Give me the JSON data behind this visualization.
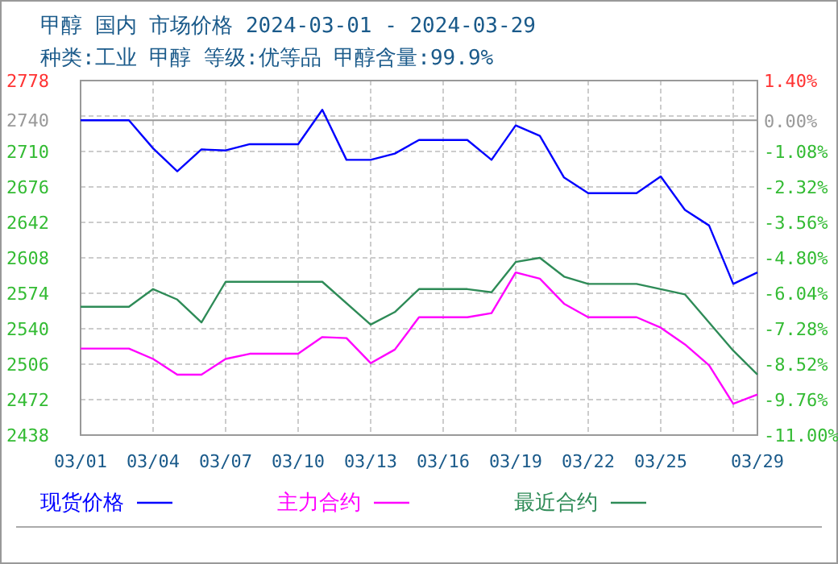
{
  "chart_data": {
    "type": "line",
    "title": "甲醇 国内 市场价格 2024-03-01 - 2024-03-29",
    "subtitle": "种类:工业 甲醇 等级:优等品 甲醇含量:99.9%",
    "xlim": [
      "--03-01",
      "--03-29"
    ],
    "xticks": [
      {
        "value": "--03-01",
        "label": "03/01"
      },
      {
        "value": "--03-04",
        "label": "03/04"
      },
      {
        "value": "--03-07",
        "label": "03/07"
      },
      {
        "value": "--03-10",
        "label": "03/10"
      },
      {
        "value": "--03-13",
        "label": "03/13"
      },
      {
        "value": "--03-16",
        "label": "03/16"
      },
      {
        "value": "--03-19",
        "label": "03/19"
      },
      {
        "value": "--03-22",
        "label": "03/22"
      },
      {
        "value": "--03-25",
        "label": "03/25"
      },
      {
        "value": "--03-28",
        "label": null
      },
      {
        "value": "--03-29",
        "label": "03/29"
      }
    ],
    "ylim": [
      2438,
      2778
    ],
    "yticks": [
      2778,
      {
        "value": 2744,
        "label": null
      },
      2710,
      2676,
      2642,
      2608,
      2574,
      2540,
      2506,
      2472,
      2438
    ],
    "y2lim": [
      -11.0,
      1.4
    ],
    "y2ticks": [
      {
        "value": 1.4,
        "label": "1.40%"
      },
      {
        "value": 0.16,
        "label": null
      },
      {
        "value": 0,
        "label": "0.00%"
      },
      {
        "value": -1.08,
        "label": "-1.08%"
      },
      {
        "value": -2.32,
        "label": "-2.32%"
      },
      {
        "value": -3.56,
        "label": "-3.56%"
      },
      {
        "value": -4.8,
        "label": "-4.80%"
      },
      {
        "value": -6.04,
        "label": "-6.04%"
      },
      {
        "value": -7.28,
        "label": "-7.28%"
      },
      {
        "value": -8.52,
        "label": "-8.52%"
      },
      {
        "value": -9.76,
        "label": "-9.76%"
      },
      {
        "value": -11.0,
        "label": "-11.00%"
      }
    ],
    "ref_lines": [
      {
        "axis": "y",
        "value": 2740,
        "label": "2740",
        "color": "#999999"
      }
    ],
    "grid": true,
    "legend": "bottom",
    "line_style": "solid",
    "marker": "none",
    "series": [
      {
        "name": "现货价格",
        "color": "#0000ff",
        "x": [
          "--03-01",
          "--03-03",
          "--03-04",
          "--03-05",
          "--03-06",
          "--03-07",
          "--03-08",
          "--03-10",
          "--03-11",
          "--03-12",
          "--03-13",
          "--03-14",
          "--03-15",
          "--03-17",
          "--03-18",
          "--03-19",
          "--03-20",
          "--03-21",
          "--03-22",
          "--03-24",
          "--03-25",
          "--03-26",
          "--03-27",
          "--03-28",
          "--03-29"
        ],
        "values": [
          2740,
          2740,
          2713,
          2691,
          2712,
          2711,
          2717,
          2717,
          2750,
          2702,
          2702,
          2708,
          2721,
          2721,
          2702,
          2735,
          2725,
          2685,
          2670,
          2670,
          2686,
          2654,
          2639,
          2583,
          2594
        ]
      },
      {
        "name": "主力合约",
        "color": "#ff00ff",
        "x": [
          "--03-01",
          "--03-03",
          "--03-04",
          "--03-05",
          "--03-06",
          "--03-07",
          "--03-08",
          "--03-10",
          "--03-11",
          "--03-12",
          "--03-13",
          "--03-14",
          "--03-15",
          "--03-17",
          "--03-18",
          "--03-19",
          "--03-20",
          "--03-21",
          "--03-22",
          "--03-24",
          "--03-25",
          "--03-26",
          "--03-27",
          "--03-28",
          "--03-29"
        ],
        "values": [
          2521,
          2521,
          2511,
          2496,
          2496,
          2511,
          2516,
          2516,
          2532,
          2531,
          2507,
          2520,
          2551,
          2551,
          2555,
          2594,
          2588,
          2564,
          2551,
          2551,
          2541,
          2525,
          2505,
          2468,
          2477
        ]
      },
      {
        "name": "最近合约",
        "color": "#2e8b57",
        "x": [
          "--03-01",
          "--03-03",
          "--03-04",
          "--03-05",
          "--03-06",
          "--03-07",
          "--03-11",
          "--03-13",
          "--03-14",
          "--03-15",
          "--03-17",
          "--03-18",
          "--03-19",
          "--03-20",
          "--03-21",
          "--03-22",
          "--03-24",
          "--03-25",
          "--03-26",
          "--03-27",
          "--03-28",
          "--03-29"
        ],
        "values": [
          2561,
          2561,
          2578,
          2568,
          2546,
          2585,
          2585,
          2544,
          2556,
          2578,
          2578,
          2575,
          2604,
          2608,
          2590,
          2583,
          2583,
          2578,
          2573,
          2546,
          2519,
          2496
        ]
      }
    ]
  }
}
